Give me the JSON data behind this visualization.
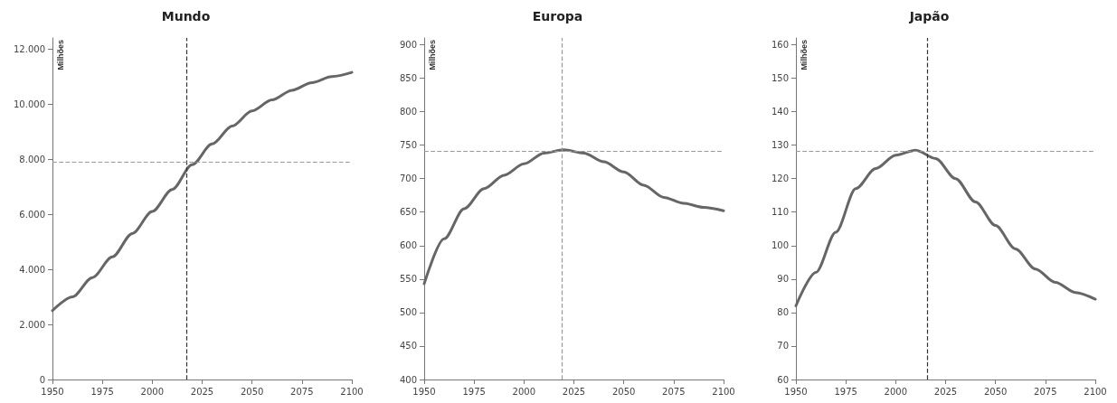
{
  "chart_data": [
    {
      "type": "line",
      "title": "Mundo",
      "ylabel": "Milhões",
      "color": "#666666",
      "marker": "none",
      "line_style": "solid",
      "x": [
        1950,
        1960,
        1970,
        1980,
        1990,
        2000,
        2010,
        2020,
        2030,
        2040,
        2050,
        2060,
        2070,
        2080,
        2090,
        2100
      ],
      "values": [
        2500,
        3000,
        3700,
        4450,
        5300,
        6100,
        6900,
        7800,
        8550,
        9200,
        9750,
        10150,
        10500,
        10780,
        11000,
        11150
      ],
      "xlim": [
        1950,
        2100
      ],
      "xticks": [
        1950,
        1975,
        2000,
        2025,
        2050,
        2075,
        2100
      ],
      "ylim": [
        0,
        12400
      ],
      "yticks": [
        0,
        {
          "value": 2000,
          "label": "2.000"
        },
        {
          "value": 4000,
          "label": "4.000"
        },
        {
          "value": 6000,
          "label": "6.000"
        },
        {
          "value": 8000,
          "label": "8.000"
        },
        {
          "value": 10000,
          "label": "10.000"
        },
        {
          "value": 12000,
          "label": "12.000"
        }
      ],
      "ref_lines": [
        {
          "axis": "x",
          "value": 2017,
          "color": "#333333",
          "line_style": "dashed"
        },
        {
          "axis": "y",
          "value": 7900,
          "color": "#999999",
          "line_style": "dashed"
        }
      ]
    },
    {
      "type": "line",
      "title": "Europa",
      "ylabel": "Milhões",
      "color": "#666666",
      "marker": "none",
      "line_style": "solid",
      "x": [
        1950,
        1960,
        1970,
        1980,
        1990,
        2000,
        2010,
        2020,
        2030,
        2040,
        2050,
        2060,
        2070,
        2080,
        2090,
        2100
      ],
      "values": [
        543,
        610,
        655,
        685,
        705,
        722,
        738,
        743,
        738,
        725,
        710,
        690,
        672,
        663,
        657,
        652
      ],
      "xlim": [
        1950,
        2100
      ],
      "xticks": [
        1950,
        1975,
        2000,
        2025,
        2050,
        2075,
        2100
      ],
      "ylim": [
        400,
        910
      ],
      "yticks": [
        400,
        450,
        500,
        550,
        600,
        650,
        700,
        750,
        800,
        850,
        900
      ],
      "ref_lines": [
        {
          "axis": "x",
          "value": 2019,
          "color": "#999999",
          "line_style": "dashed"
        },
        {
          "axis": "y",
          "value": 741,
          "color": "#999999",
          "line_style": "dashed"
        }
      ]
    },
    {
      "type": "line",
      "title": "Japão",
      "ylabel": "Milhões",
      "color": "#666666",
      "marker": "none",
      "line_style": "solid",
      "x": [
        1950,
        1960,
        1970,
        1980,
        1990,
        2000,
        2010,
        2020,
        2030,
        2040,
        2050,
        2060,
        2070,
        2080,
        2090,
        2100
      ],
      "values": [
        82,
        92,
        104,
        117,
        123,
        127,
        128.5,
        126,
        120,
        113,
        106,
        99,
        93,
        89,
        86,
        84
      ],
      "xlim": [
        1950,
        2100
      ],
      "xticks": [
        1950,
        1975,
        2000,
        2025,
        2050,
        2075,
        2100
      ],
      "ylim": [
        60,
        162
      ],
      "yticks": [
        60,
        70,
        80,
        90,
        100,
        110,
        120,
        130,
        140,
        150,
        160
      ],
      "ref_lines": [
        {
          "axis": "x",
          "value": 2016,
          "color": "#333333",
          "line_style": "dashed"
        },
        {
          "axis": "y",
          "value": 128.3,
          "color": "#999999",
          "line_style": "dashed"
        }
      ]
    }
  ]
}
